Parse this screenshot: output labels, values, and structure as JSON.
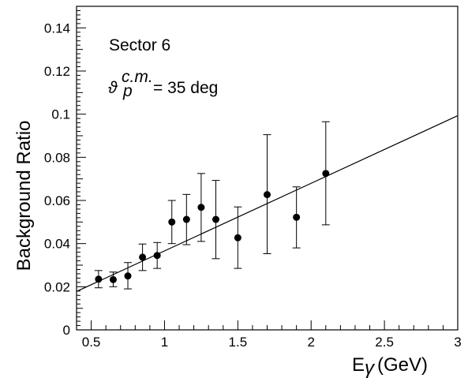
{
  "chart_data": {
    "type": "scatter",
    "title": "",
    "xlabel_main": "E",
    "xlabel_sub": "γ",
    "xlabel_unit": "(GeV)",
    "ylabel": "Background Ratio",
    "xlim": [
      0.4,
      3.0
    ],
    "ylim": [
      0,
      0.15
    ],
    "x_ticks": [
      0.5,
      1,
      1.5,
      2,
      2.5,
      3
    ],
    "x_tick_labels": [
      "0.5",
      "1",
      "1.5",
      "2",
      "2.5",
      "3"
    ],
    "y_ticks": [
      0,
      0.02,
      0.04,
      0.06,
      0.08,
      0.1,
      0.12,
      0.14
    ],
    "y_tick_labels": [
      "0",
      "0.02",
      "0.04",
      "0.06",
      "0.08",
      "0.1",
      "0.12",
      "0.14"
    ],
    "grid": false,
    "annotations": {
      "sector": "Sector 6",
      "angle_symbol": "ϑ",
      "angle_sub": "p",
      "angle_sup": "c.m.",
      "angle_value": "= 35 deg"
    },
    "points": [
      {
        "x": 0.55,
        "y": 0.0235,
        "err_low": 0.0195,
        "err_high": 0.0275
      },
      {
        "x": 0.65,
        "y": 0.0233,
        "err_low": 0.02,
        "err_high": 0.0268
      },
      {
        "x": 0.75,
        "y": 0.025,
        "err_low": 0.019,
        "err_high": 0.0312
      },
      {
        "x": 0.85,
        "y": 0.0337,
        "err_low": 0.0275,
        "err_high": 0.0398
      },
      {
        "x": 0.95,
        "y": 0.0345,
        "err_low": 0.0285,
        "err_high": 0.0405
      },
      {
        "x": 1.05,
        "y": 0.05,
        "err_low": 0.04,
        "err_high": 0.06
      },
      {
        "x": 1.15,
        "y": 0.0512,
        "err_low": 0.0395,
        "err_high": 0.0628
      },
      {
        "x": 1.25,
        "y": 0.0568,
        "err_low": 0.041,
        "err_high": 0.0725
      },
      {
        "x": 1.35,
        "y": 0.0512,
        "err_low": 0.033,
        "err_high": 0.0693
      },
      {
        "x": 1.5,
        "y": 0.0427,
        "err_low": 0.0285,
        "err_high": 0.057
      },
      {
        "x": 1.7,
        "y": 0.0627,
        "err_low": 0.0353,
        "err_high": 0.0905
      },
      {
        "x": 1.9,
        "y": 0.0522,
        "err_low": 0.038,
        "err_high": 0.0663
      },
      {
        "x": 2.1,
        "y": 0.0725,
        "err_low": 0.0487,
        "err_high": 0.0965
      }
    ],
    "fit_line": {
      "x": [
        0.4,
        3.0
      ],
      "y": [
        0.0178,
        0.0993
      ]
    }
  }
}
